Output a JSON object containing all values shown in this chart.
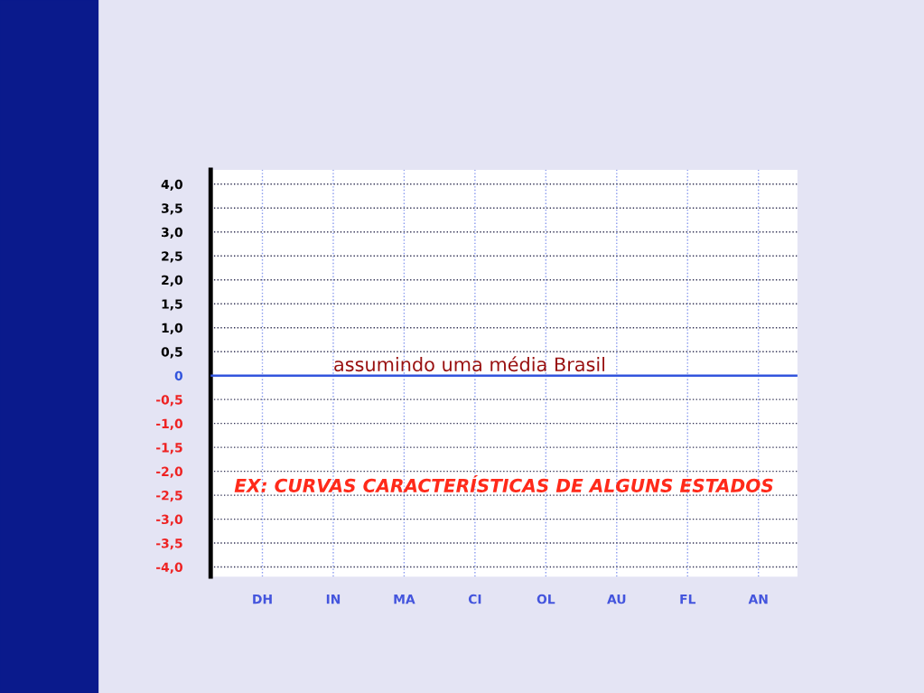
{
  "chart_data": {
    "type": "line",
    "categories": [
      "DH",
      "IN",
      "MA",
      "CI",
      "OL",
      "AU",
      "FL",
      "AN"
    ],
    "ylim": [
      -4.2,
      4.3
    ],
    "yticks": [
      {
        "value": 4,
        "label": "4,0"
      },
      {
        "value": 3.5,
        "label": "3,5"
      },
      {
        "value": 3,
        "label": "3,0"
      },
      {
        "value": 2.5,
        "label": "2,5"
      },
      {
        "value": 2,
        "label": "2,0"
      },
      {
        "value": 1.5,
        "label": "1,5"
      },
      {
        "value": 1,
        "label": "1,0"
      },
      {
        "value": 0.5,
        "label": "0,5"
      },
      0,
      {
        "value": -0.5,
        "label": "-0,5"
      },
      {
        "value": -1,
        "label": "-1,0"
      },
      {
        "value": -1.5,
        "label": "-1,5"
      },
      {
        "value": -2,
        "label": "-2,0"
      },
      {
        "value": -2.5,
        "label": "-2,5"
      },
      {
        "value": -3,
        "label": "-3,0"
      },
      {
        "value": -3.5,
        "label": "-3,5"
      },
      {
        "value": -4,
        "label": "-4,0"
      }
    ],
    "grid": true,
    "ref_lines": [
      {
        "axis": "y",
        "value": 0,
        "label": "assumindo uma média Brasil",
        "color": "#3355dd",
        "line_style": "solid"
      }
    ],
    "annotations": [
      "EX: CURVAS CARACTERÍSTICAS DE ALGUNS ESTADOS"
    ]
  }
}
